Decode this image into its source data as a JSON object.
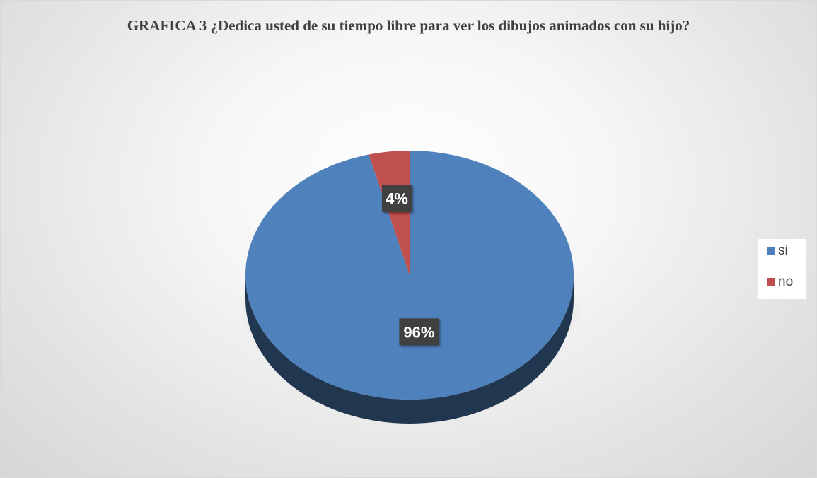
{
  "chart_data": {
    "type": "pie",
    "style": "3d",
    "title": "GRAFICA 3 ¿Dedica usted de su tiempo libre para ver los dibujos animados con su hijo?",
    "categories": [
      "si",
      "no"
    ],
    "values": [
      96,
      4
    ],
    "data_labels": [
      "96%",
      "4%"
    ],
    "colors": [
      "#4F81BD",
      "#C0504D"
    ],
    "legend_position": "right"
  }
}
